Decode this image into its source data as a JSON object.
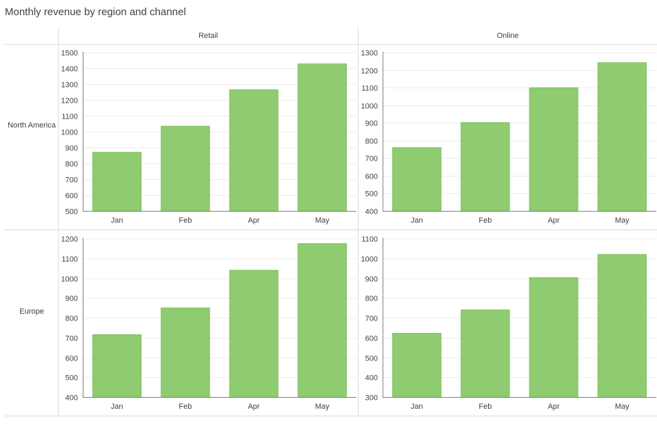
{
  "title": "Monthly revenue by region and channel",
  "colors": {
    "bar": "#8fcb71",
    "bar_edge": "#7cbd5e",
    "grid": "#ececec",
    "axis": "#7f7f7f",
    "divider": "#d9d9d9",
    "text": "#404040"
  },
  "chart_data": [
    {
      "type": "bar",
      "row": "North America",
      "column": "Retail",
      "categories": [
        "Jan",
        "Feb",
        "Apr",
        "May"
      ],
      "values": [
        870,
        1035,
        1265,
        1428
      ],
      "ylim": [
        500,
        1500
      ],
      "yticks": [
        500,
        600,
        700,
        800,
        900,
        1000,
        1100,
        1200,
        1300,
        1400,
        1500
      ],
      "grid": true
    },
    {
      "type": "bar",
      "row": "North America",
      "column": "Online",
      "categories": [
        "Jan",
        "Feb",
        "Apr",
        "May"
      ],
      "values": [
        760,
        902,
        1100,
        1242
      ],
      "ylim": [
        400,
        1300
      ],
      "yticks": [
        400,
        500,
        600,
        700,
        800,
        900,
        1000,
        1100,
        1200,
        1300
      ],
      "grid": true
    },
    {
      "type": "bar",
      "row": "Europe",
      "column": "Retail",
      "categories": [
        "Jan",
        "Feb",
        "Apr",
        "May"
      ],
      "values": [
        715,
        850,
        1040,
        1175
      ],
      "ylim": [
        400,
        1200
      ],
      "yticks": [
        400,
        500,
        600,
        700,
        800,
        900,
        1000,
        1100,
        1200
      ],
      "grid": true
    },
    {
      "type": "bar",
      "row": "Europe",
      "column": "Online",
      "categories": [
        "Jan",
        "Feb",
        "Apr",
        "May"
      ],
      "values": [
        622,
        740,
        903,
        1020
      ],
      "ylim": [
        300,
        1100
      ],
      "yticks": [
        300,
        400,
        500,
        600,
        700,
        800,
        900,
        1000,
        1100
      ],
      "grid": true
    }
  ]
}
